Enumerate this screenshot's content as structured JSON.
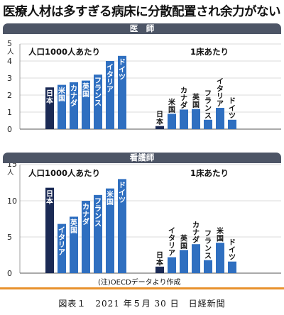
{
  "headline": "医療人材は多すぎる病床に分散配置され余力がない",
  "note": "(注)OECDデータより作成",
  "caption": "図表１　2021 年５月 30 日　日経新聞",
  "colors": {
    "band": "#4d5566",
    "bar": "#2f6fc0",
    "japan": "#1b2a55",
    "rule": "#e8912c"
  },
  "chart_data": [
    {
      "type": "bar",
      "title": "医　師",
      "ylim": [
        0,
        5
      ],
      "yticks": [
        0,
        1,
        2,
        3,
        4,
        5
      ],
      "ylabel": "人",
      "unit_top": "5",
      "groups": [
        {
          "name": "人口1000人あたり",
          "categories": [
            "日本",
            "米国",
            "カナダ",
            "英国",
            "フランス",
            "イタリア",
            "ドイツ"
          ],
          "values": [
            2.45,
            2.6,
            2.75,
            2.85,
            3.2,
            4.0,
            4.3
          ]
        },
        {
          "name": "1床あたり",
          "categories": [
            "日本",
            "米国",
            "カナダ",
            "英国",
            "フランス",
            "イタリア",
            "ドイツ"
          ],
          "values": [
            0.18,
            0.9,
            1.15,
            1.18,
            0.55,
            1.25,
            0.55
          ]
        }
      ]
    },
    {
      "type": "bar",
      "title": "看護師",
      "ylim": [
        0,
        15
      ],
      "yticks": [
        0,
        5,
        10,
        15
      ],
      "ylabel": "人",
      "unit_top": "15",
      "groups": [
        {
          "name": "人口1000人あたり",
          "categories": [
            "日本",
            "イタリア",
            "英国",
            "カナダ",
            "フランス",
            "米国",
            "ドイツ"
          ],
          "values": [
            11.8,
            6.8,
            7.8,
            10.0,
            10.8,
            11.7,
            13.0
          ]
        },
        {
          "name": "1床あたり",
          "categories": [
            "日本",
            "イタリア",
            "英国",
            "カナダ",
            "フランス",
            "米国",
            "ドイツ"
          ],
          "values": [
            0.9,
            2.2,
            3.2,
            4.0,
            1.8,
            4.2,
            1.6
          ]
        }
      ]
    }
  ]
}
